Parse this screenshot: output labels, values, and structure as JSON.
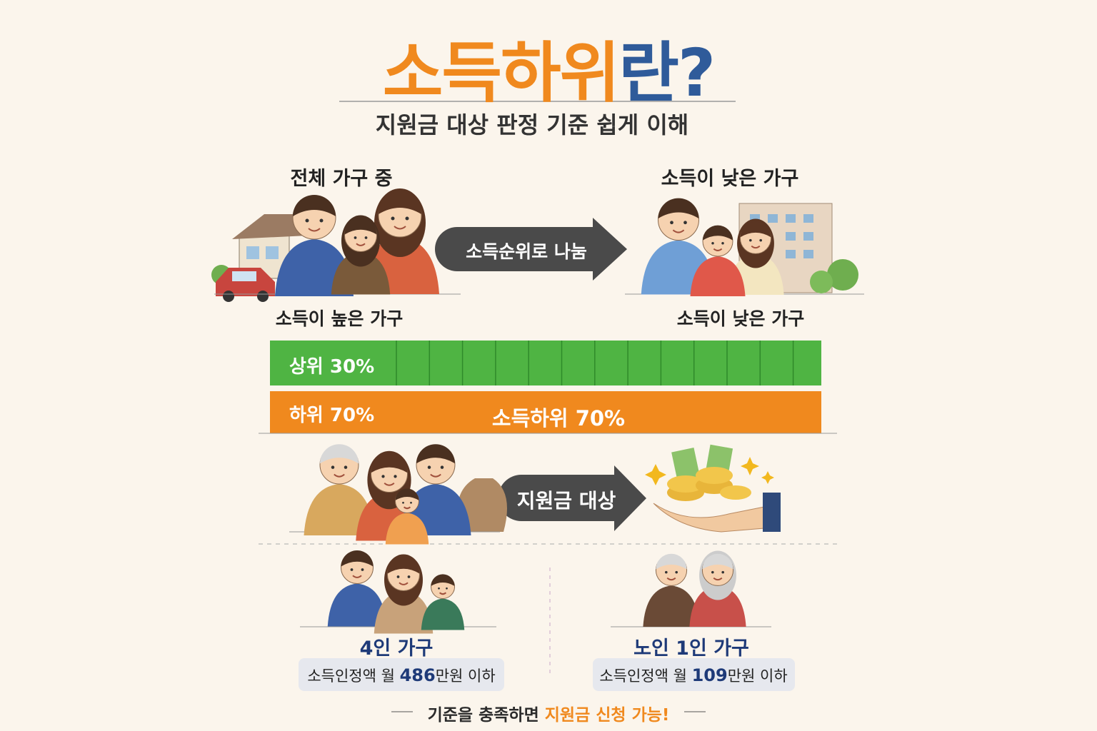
{
  "header": {
    "title_main": "소득하위",
    "title_tail": "란?",
    "subtitle": "지원금 대상 판정 기준 쉽게 이해"
  },
  "split": {
    "left_label": "전체 가구 중",
    "right_label": "소득이 낮은 가구",
    "arrow": "소득순위로 나눔",
    "high_label": "소득이 높은 가구",
    "low_label": "소득이 낮은 가구"
  },
  "bars": {
    "upper": "상위 30%",
    "lower": "하위 70%",
    "lower_center": "소득하위 70%"
  },
  "support": {
    "arrow": "지원금 대상"
  },
  "cases": [
    {
      "title": "4인 가구",
      "prefix": "소득인정액 월",
      "amount": "486",
      "suffix": "만원 이하"
    },
    {
      "title": "노인 1인 가구",
      "prefix": "소득인정액 월",
      "amount": "109",
      "suffix": "만원 이하"
    }
  ],
  "footer": {
    "text": "기준을 충족하면",
    "highlight": "지원금 신청 가능!"
  }
}
